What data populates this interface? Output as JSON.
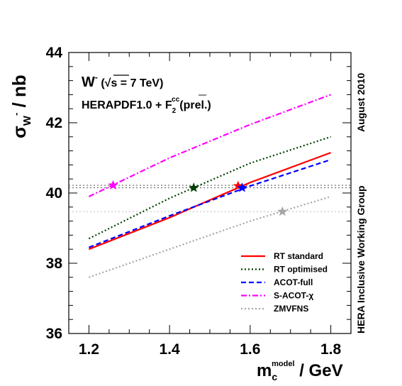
{
  "chart_data": {
    "type": "line",
    "x": [
      1.2,
      1.4,
      1.6,
      1.8
    ],
    "xlim": [
      1.15,
      1.85
    ],
    "ylim": [
      36,
      44
    ],
    "xticks": [
      1.2,
      1.4,
      1.6,
      1.8
    ],
    "yticks": [
      36,
      38,
      40,
      42,
      44
    ],
    "xtick_labels": [
      "1.2",
      "1.4",
      "1.6",
      "1.8"
    ],
    "ytick_labels": [
      "36",
      "38",
      "40",
      "42",
      "44"
    ],
    "ylabel": {
      "main": "σ",
      "sub": "W",
      "sup": "-",
      "rest": " / nb"
    },
    "xlabel": {
      "main": "m",
      "sub": "c",
      "sup": "model",
      "rest": " / GeV"
    },
    "annotations": {
      "process_w": "W",
      "process_sup": "-",
      "sqrt_s": " (√s = 7 TeV)",
      "pdf": "HERAPDF1.0 + F",
      "pdf_sub": "2",
      "pdf_sup": "cc",
      "pdf_rest": "(prel.)",
      "side_top": "August 2010",
      "side_bottom": "HERA Inclusive Working Group"
    },
    "legend_position": "bottom-right",
    "series": [
      {
        "name": "RT standard",
        "color": "#ff0000",
        "dash": "solid",
        "values": [
          38.4,
          39.3,
          40.3,
          41.15
        ],
        "star": {
          "x": 1.57,
          "y": 40.2
        }
      },
      {
        "name": "RT optimised",
        "color": "#004000",
        "dash": "dotted",
        "values": [
          38.7,
          39.85,
          40.85,
          41.6
        ],
        "star": {
          "x": 1.46,
          "y": 40.15
        }
      },
      {
        "name": "ACOT-full",
        "color": "#0000ff",
        "dash": "dashed",
        "values": [
          38.45,
          39.35,
          40.2,
          40.95
        ],
        "star": {
          "x": 1.58,
          "y": 40.15
        }
      },
      {
        "name": "S-ACOT-χ",
        "color": "#ff00ff",
        "dash": "dashdot",
        "values": [
          39.9,
          41.0,
          41.95,
          42.8
        ],
        "star": {
          "x": 1.26,
          "y": 40.22
        }
      },
      {
        "name": "ZMVFNS",
        "color": "#a6a6a6",
        "dash": "dotted",
        "values": [
          37.6,
          38.4,
          39.2,
          39.9
        ],
        "star": {
          "x": 1.68,
          "y": 39.47
        }
      }
    ],
    "hlines": [
      {
        "y": 40.22,
        "color": "#555555",
        "dash": "dotted"
      },
      {
        "y": 40.15,
        "color": "#555555",
        "dash": "dotted"
      },
      {
        "y": 39.47,
        "color": "#bbbbbb",
        "dash": "dotted"
      }
    ]
  }
}
